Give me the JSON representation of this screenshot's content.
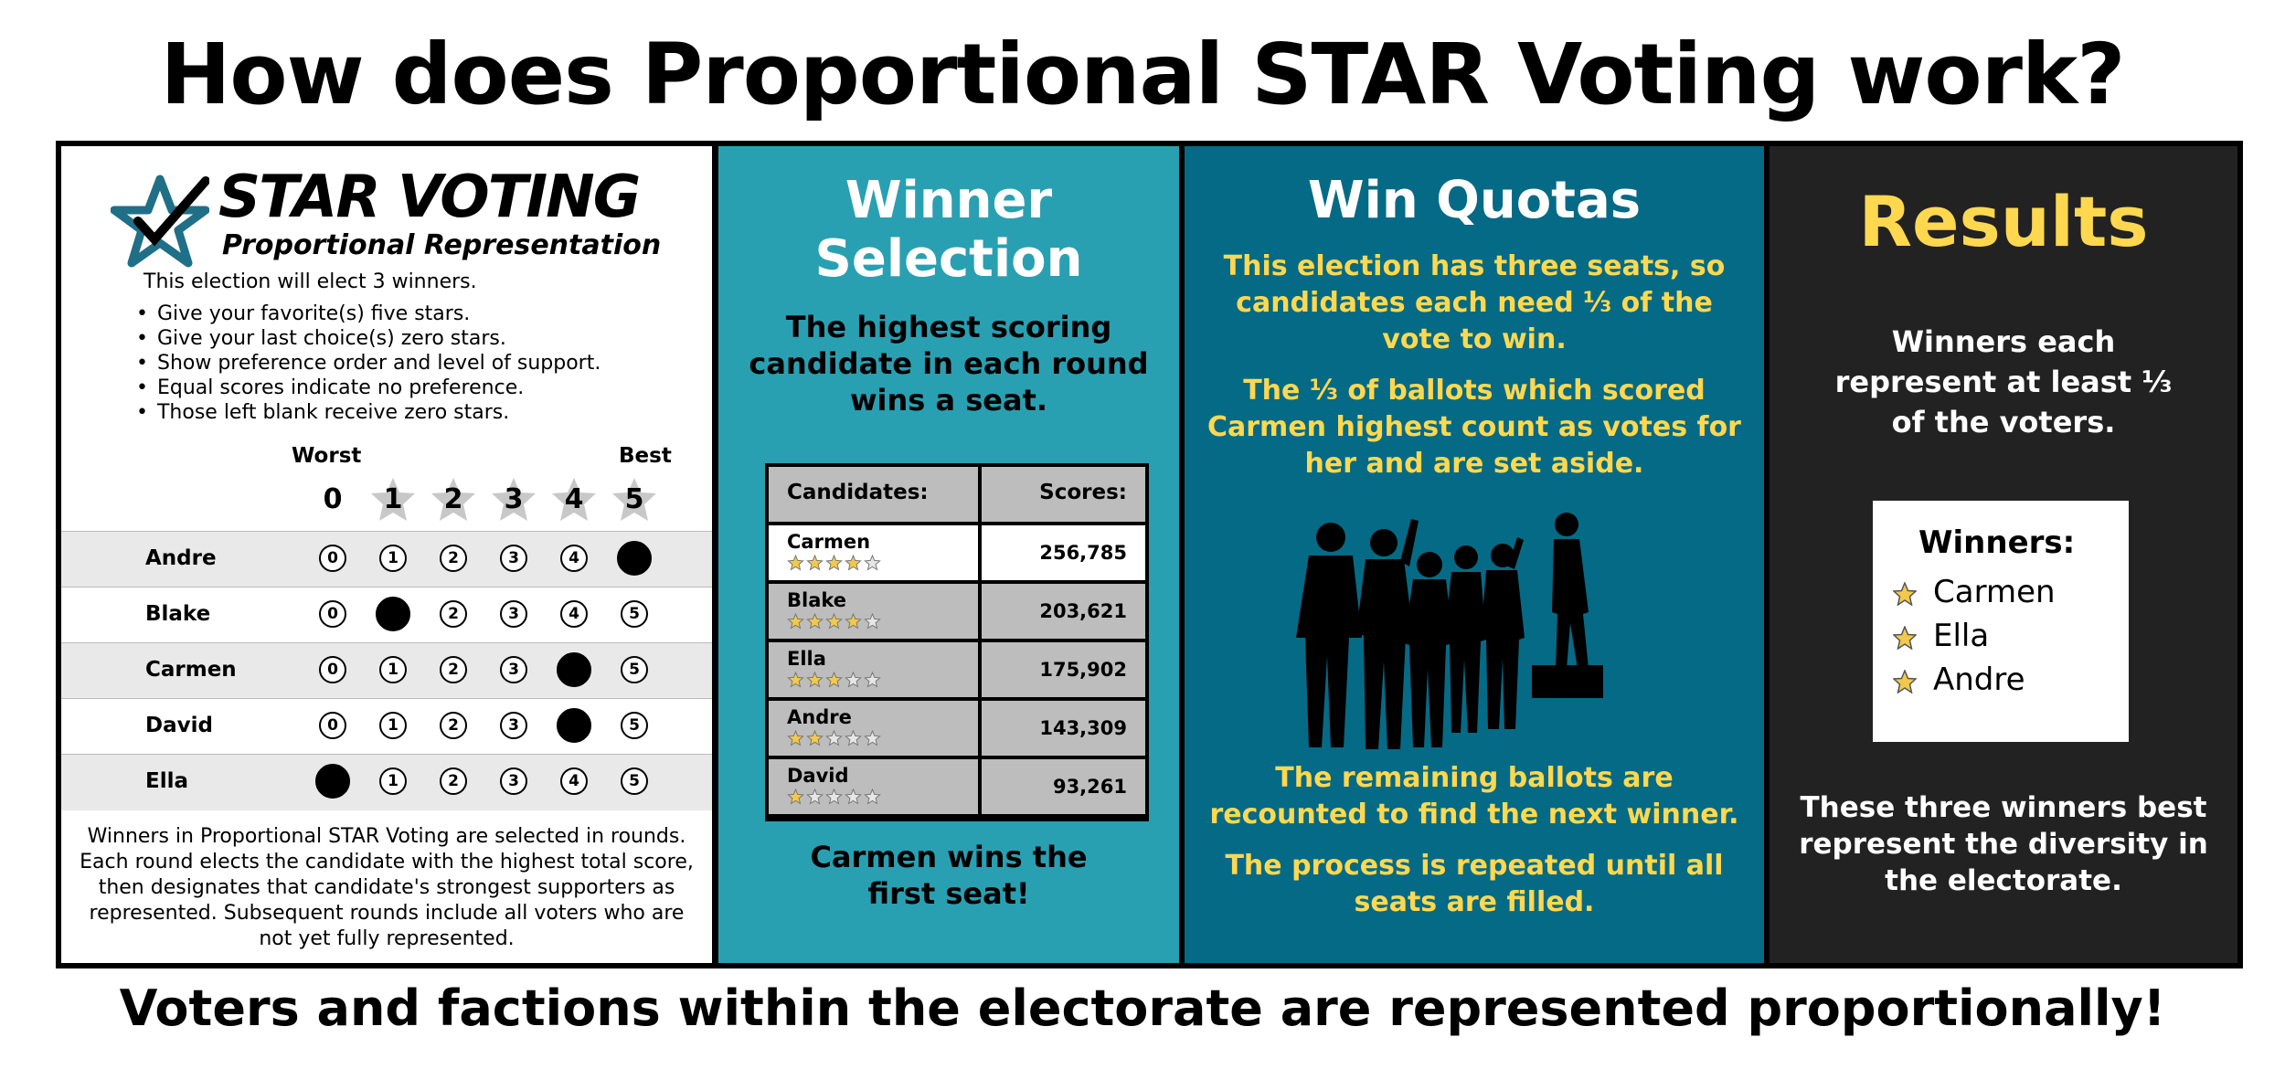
{
  "title": "How does Proportional STAR Voting work?",
  "footer": "Voters and factions within the electorate are represented proportionally!",
  "ballot": {
    "logo_title": "STAR VOTING",
    "logo_subtitle": "Proportional Representation",
    "intro": "This election will elect 3 winners.",
    "instructions": [
      "Give your favorite(s) five stars.",
      "Give your last choice(s) zero stars.",
      "Show preference order and level of support.",
      "Equal scores indicate no preference.",
      "Those left blank receive zero stars."
    ],
    "worst_label": "Worst",
    "best_label": "Best",
    "scale": [
      "0",
      "1",
      "2",
      "3",
      "4",
      "5"
    ],
    "rows": [
      {
        "name": "Andre",
        "score": 5
      },
      {
        "name": "Blake",
        "score": 1
      },
      {
        "name": "Carmen",
        "score": 4
      },
      {
        "name": "David",
        "score": 4
      },
      {
        "name": "Ella",
        "score": 0
      }
    ],
    "note": "Winners in Proportional STAR Voting are selected in rounds. Each round elects the candidate with the highest total score, then designates that candidate's strongest supporters as represented. Subsequent rounds include all voters who are not yet fully represented."
  },
  "selection": {
    "title": "Winner Selection",
    "body": "The highest scoring candidate in each round wins a seat.",
    "col_candidates": "Candidates:",
    "col_scores": "Scores:",
    "rows": [
      {
        "name": "Carmen",
        "stars": 4,
        "score": "256,785"
      },
      {
        "name": "Blake",
        "stars": 4,
        "score": "203,621"
      },
      {
        "name": "Ella",
        "stars": 3,
        "score": "175,902"
      },
      {
        "name": "Andre",
        "stars": 2,
        "score": "143,309"
      },
      {
        "name": "David",
        "stars": 1,
        "score": "93,261"
      }
    ],
    "footer": "Carmen wins the first seat!"
  },
  "quotas": {
    "title": "Win Quotas",
    "para1": "This election has three seats, so candidates each need ⅓ of the vote to win.",
    "para2": "The ⅓ of ballots which scored Carmen highest count as votes for her and are set aside.",
    "para3": "The remaining ballots are recounted to find the next winner.",
    "para4": "The process is repeated until all seats are filled."
  },
  "results": {
    "title": "Results",
    "body": "Winners each represent at least ⅓ of the voters.",
    "winners_label": "Winners:",
    "winners": [
      "Carmen",
      "Ella",
      "Andre"
    ],
    "footer": "These three winners best represent the diversity in the electorate."
  },
  "colors": {
    "selection_bg": "#29a0b2",
    "quotas_bg": "#056a86",
    "results_bg": "#222222",
    "accent_yellow": "#ffd84f",
    "logo_teal": "#1f6f87"
  }
}
